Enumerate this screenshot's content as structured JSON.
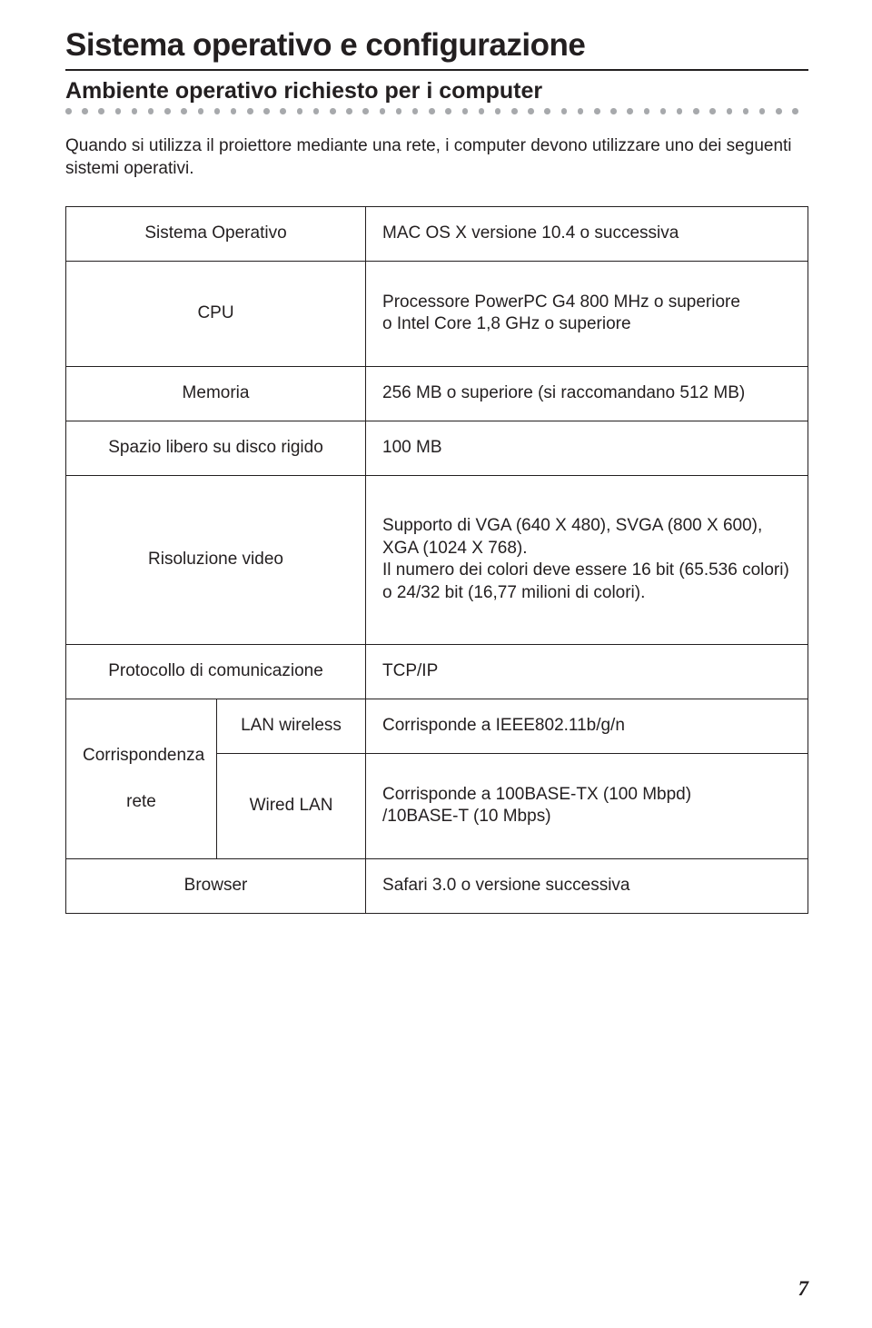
{
  "page": {
    "title": "Sistema operativo e configurazione",
    "subtitle": "Ambiente operativo richiesto per i computer",
    "intro": "Quando si utilizza il proiettore mediante una rete, i computer devono utilizzare uno dei seguenti sistemi operativi.",
    "page_number": "7"
  },
  "table": {
    "rows": {
      "os": {
        "label": "Sistema Operativo",
        "value": "MAC OS X versione 10.4 o successiva"
      },
      "cpu": {
        "label": "CPU",
        "value": "Processore PowerPC G4 800 MHz o superiore\no Intel Core 1,8 GHz o superiore"
      },
      "memory": {
        "label": "Memoria",
        "value": "256 MB o superiore (si raccomandano 512 MB)"
      },
      "disk": {
        "label": "Spazio libero su disco rigido",
        "value": "100 MB"
      },
      "video": {
        "label": "Risoluzione video",
        "value": "Supporto di VGA (640 X 480), SVGA (800 X 600), XGA (1024 X 768).\nIl numero dei colori deve essere 16 bit (65.536 colori) o 24/32 bit (16,77 milioni di colori)."
      },
      "protocol": {
        "label": "Protocollo di comunicazione",
        "value": "TCP/IP"
      },
      "net_group": {
        "label": "Corrispondenza rete"
      },
      "wlan": {
        "label": "LAN wireless",
        "value": "Corrisponde a IEEE802.11b/g/n"
      },
      "lan": {
        "label": "Wired LAN",
        "value": "Corrisponde a 100BASE-TX (100 Mbpd)\n/10BASE-T (10 Mbps)"
      },
      "browser": {
        "label": "Browser",
        "value": "Safari 3.0 o versione successiva"
      }
    }
  },
  "style": {
    "dot_color": "#a7a9ac",
    "dot_count": 45,
    "border_color": "#231f20",
    "text_color": "#231f20",
    "background_color": "#ffffff"
  }
}
